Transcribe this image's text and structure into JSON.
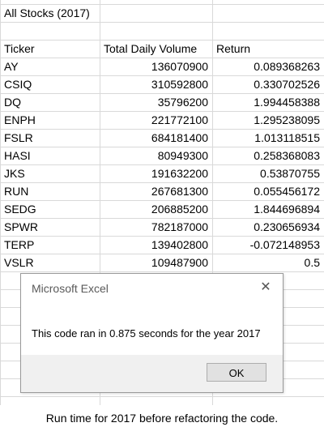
{
  "sheet": {
    "title": "All Stocks (2017)",
    "headers": [
      "Ticker",
      "Total Daily Volume",
      "Return"
    ],
    "rows": [
      [
        "AY",
        "136070900",
        "0.089368263"
      ],
      [
        "CSIQ",
        "310592800",
        "0.330702526"
      ],
      [
        "DQ",
        "35796200",
        "1.994458388"
      ],
      [
        "ENPH",
        "221772100",
        "1.295238095"
      ],
      [
        "FSLR",
        "684181400",
        "1.013118515"
      ],
      [
        "HASI",
        "80949300",
        "0.258368083"
      ],
      [
        "JKS",
        "191632200",
        "0.53870755"
      ],
      [
        "RUN",
        "267681300",
        "0.055456172"
      ],
      [
        "SEDG",
        "206885200",
        "1.844696894"
      ],
      [
        "SPWR",
        "782187000",
        "0.230656934"
      ],
      [
        "TERP",
        "139402800",
        "-0.072148953"
      ],
      [
        "VSLR",
        "109487900",
        "0.5"
      ]
    ]
  },
  "dialog": {
    "title": "Microsoft Excel",
    "message": "This code ran in 0.875 seconds for the year 2017",
    "ok_label": "OK",
    "close_icon": "close-icon"
  },
  "caption": "Run time for 2017 before refactoring the code."
}
